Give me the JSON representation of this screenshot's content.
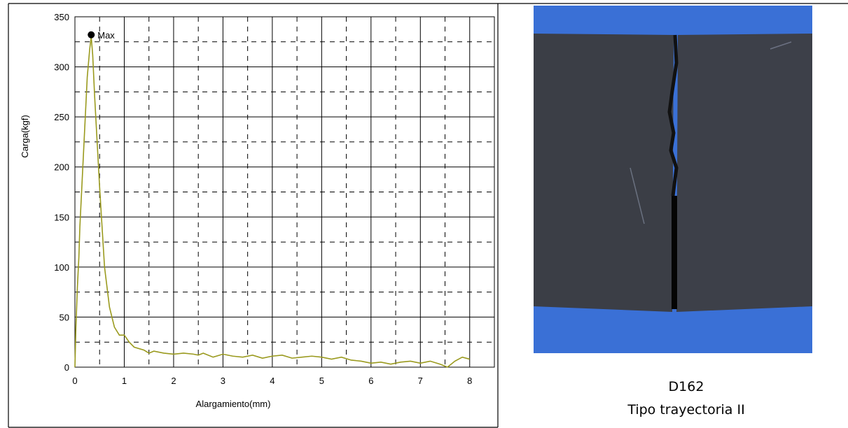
{
  "chart_data": {
    "type": "line",
    "x_label": "Alargamiento(mm)",
    "y_label": "Carga(kgf)",
    "x": [
      0,
      0.02,
      0.05,
      0.08,
      0.1,
      0.15,
      0.2,
      0.25,
      0.3,
      0.33,
      0.36,
      0.4,
      0.45,
      0.5,
      0.55,
      0.6,
      0.7,
      0.8,
      0.9,
      1.0,
      1.1,
      1.2,
      1.4,
      1.5,
      1.6,
      1.8,
      2.0,
      2.2,
      2.4,
      2.5,
      2.6,
      2.8,
      3.0,
      3.2,
      3.4,
      3.6,
      3.8,
      4.0,
      4.2,
      4.4,
      4.6,
      4.8,
      5.0,
      5.2,
      5.4,
      5.6,
      5.8,
      6.0,
      6.2,
      6.4,
      6.6,
      6.8,
      7.0,
      7.2,
      7.4,
      7.55,
      7.7,
      7.85,
      8.0
    ],
    "values": [
      0,
      40,
      80,
      110,
      140,
      190,
      240,
      290,
      318,
      330,
      312,
      270,
      225,
      180,
      140,
      100,
      60,
      40,
      32,
      32,
      25,
      20,
      17,
      14,
      16,
      14,
      13,
      14,
      13,
      12,
      14,
      10,
      13,
      11,
      10,
      12,
      9,
      11,
      12,
      9,
      10,
      11,
      10,
      8,
      10,
      7,
      6,
      4,
      5,
      3,
      5,
      6,
      4,
      6,
      3,
      0,
      6,
      10,
      8
    ],
    "color": "#9a9a1e",
    "xlim": [
      0,
      8.5
    ],
    "ylim": [
      0,
      350
    ],
    "xticks": [
      0,
      1,
      2,
      3,
      4,
      5,
      6,
      7,
      8
    ],
    "yticks": [
      0,
      50,
      100,
      150,
      200,
      250,
      300,
      350
    ],
    "minor_xticks": [
      0.5,
      1.5,
      2.5,
      3.5,
      4.5,
      5.5,
      6.5,
      7.5
    ],
    "minor_yticks": [
      25,
      75,
      125,
      175,
      225,
      275,
      325
    ],
    "grid": true,
    "max_marker": {
      "x": 0.33,
      "y": 332,
      "label": "Max"
    }
  },
  "caption": {
    "id": "D162",
    "text": "Tipo trayectoria II"
  }
}
